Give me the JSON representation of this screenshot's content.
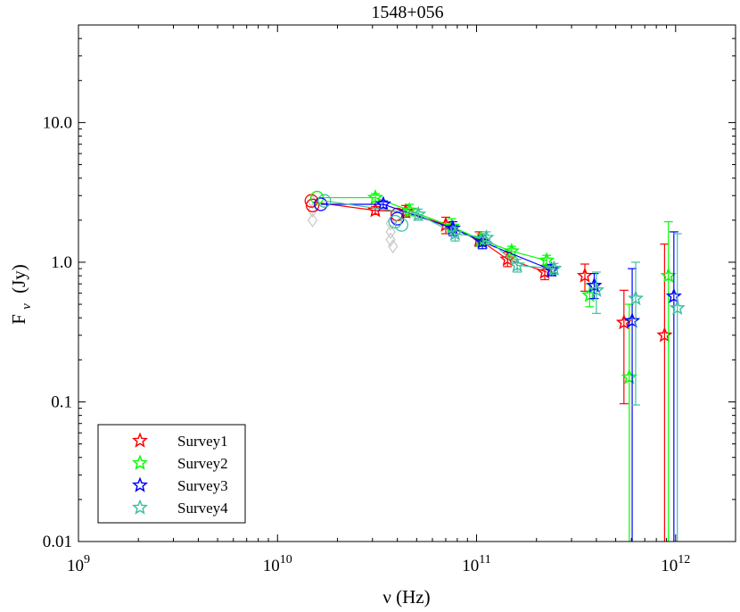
{
  "chart_data": {
    "type": "scatter",
    "title": "1548+056",
    "xlabel": "ν (Hz)",
    "ylabel": "Fν (Jy)",
    "ylabel_main": "F",
    "ylabel_sub": "ν",
    "ylabel_unit": "(Jy)",
    "xscale": "log",
    "yscale": "log",
    "xlim": [
      1000000000.0,
      2000000000000.0
    ],
    "ylim": [
      0.01,
      50
    ],
    "xticks": [
      {
        "value": 1000000000.0,
        "base": "10",
        "exp": "9"
      },
      {
        "value": 10000000000.0,
        "base": "10",
        "exp": "10"
      },
      {
        "value": 100000000000.0,
        "base": "10",
        "exp": "11"
      },
      {
        "value": 1000000000000.0,
        "base": "10",
        "exp": "12"
      }
    ],
    "yticks": [
      {
        "value": 0.01,
        "label": "0.01"
      },
      {
        "value": 0.1,
        "label": "0.1"
      },
      {
        "value": 1,
        "label": "1.0"
      },
      {
        "value": 10,
        "label": "10.0"
      }
    ],
    "legend_position": "bottom-left",
    "reference_points": {
      "name": "archival",
      "color": "#c8c8c8",
      "marker": "diamond",
      "x": [
        15000000000.0,
        15000000000.0,
        15000000000.0,
        37000000000.0,
        37000000000.0,
        37000000000.0,
        38000000000.0
      ],
      "y": [
        2.7,
        2.35,
        2.0,
        1.9,
        1.65,
        1.45,
        1.3
      ]
    },
    "series": [
      {
        "name": "Survey1",
        "color": "#ff0000",
        "circles": [
          {
            "x": 14800000000.0,
            "y": 2.75
          },
          {
            "x": 15000000000.0,
            "y": 2.55
          },
          {
            "x": 40000000000.0,
            "y": 2.2
          }
        ],
        "line": [
          {
            "x": 15000000000.0,
            "y": 2.7
          },
          {
            "x": 31000000000.0,
            "y": 2.35
          },
          {
            "x": 44000000000.0,
            "y": 2.3
          },
          {
            "x": 70000000000.0,
            "y": 1.85
          },
          {
            "x": 103000000000.0,
            "y": 1.45
          },
          {
            "x": 143000000000.0,
            "y": 1.05
          },
          {
            "x": 225000000000.0,
            "y": 0.85
          }
        ],
        "stars": [
          {
            "x": 31000000000.0,
            "y": 2.35,
            "lo": 2.2,
            "hi": 2.5
          },
          {
            "x": 44000000000.0,
            "y": 2.3,
            "lo": 2.1,
            "hi": 2.55
          },
          {
            "x": 70000000000.0,
            "y": 1.85,
            "lo": 1.6,
            "hi": 2.1
          },
          {
            "x": 103000000000.0,
            "y": 1.45,
            "lo": 1.3,
            "hi": 1.65
          },
          {
            "x": 143000000000.0,
            "y": 1.05,
            "lo": 0.93,
            "hi": 1.18
          },
          {
            "x": 220000000000.0,
            "y": 0.85,
            "lo": 0.75,
            "hi": 0.95
          },
          {
            "x": 350000000000.0,
            "y": 0.8,
            "lo": 0.62,
            "hi": 0.97
          },
          {
            "x": 550000000000.0,
            "y": 0.37,
            "lo": 0.097,
            "hi": 0.63
          },
          {
            "x": 880000000000.0,
            "y": 0.3,
            "lo": 0.01,
            "hi": 1.35
          }
        ]
      },
      {
        "name": "Survey2",
        "color": "#00ff00",
        "circles": [
          {
            "x": 15800000000.0,
            "y": 2.9
          }
        ],
        "line": [
          {
            "x": 15800000000.0,
            "y": 2.9
          },
          {
            "x": 31000000000.0,
            "y": 2.9
          },
          {
            "x": 46000000000.0,
            "y": 2.35
          },
          {
            "x": 75000000000.0,
            "y": 1.8
          },
          {
            "x": 105000000000.0,
            "y": 1.45
          },
          {
            "x": 150000000000.0,
            "y": 1.2
          },
          {
            "x": 225000000000.0,
            "y": 1.03
          }
        ],
        "stars": [
          {
            "x": 31000000000.0,
            "y": 2.9,
            "lo": 2.7,
            "hi": 3.1
          },
          {
            "x": 46000000000.0,
            "y": 2.35,
            "lo": 2.15,
            "hi": 2.6
          },
          {
            "x": 75000000000.0,
            "y": 1.8,
            "lo": 1.6,
            "hi": 2.05
          },
          {
            "x": 105000000000.0,
            "y": 1.45,
            "lo": 1.3,
            "hi": 1.6
          },
          {
            "x": 150000000000.0,
            "y": 1.2,
            "lo": 1.08,
            "hi": 1.3
          },
          {
            "x": 225000000000.0,
            "y": 1.03,
            "lo": 0.94,
            "hi": 1.12
          },
          {
            "x": 370000000000.0,
            "y": 0.58,
            "lo": 0.48,
            "hi": 0.7
          },
          {
            "x": 585000000000.0,
            "y": 0.15,
            "lo": 0.01,
            "hi": 0.5
          },
          {
            "x": 920000000000.0,
            "y": 0.8,
            "lo": 0.01,
            "hi": 1.95
          }
        ]
      },
      {
        "name": "Survey3",
        "color": "#0000ff",
        "circles": [
          {
            "x": 16500000000.0,
            "y": 2.6
          },
          {
            "x": 40000000000.0,
            "y": 2.05
          }
        ],
        "line": [
          {
            "x": 16500000000.0,
            "y": 2.6
          },
          {
            "x": 34000000000.0,
            "y": 2.6
          },
          {
            "x": 76000000000.0,
            "y": 1.75
          },
          {
            "x": 107000000000.0,
            "y": 1.4
          },
          {
            "x": 238000000000.0,
            "y": 0.88
          }
        ],
        "stars": [
          {
            "x": 34000000000.0,
            "y": 2.6,
            "lo": 2.45,
            "hi": 2.75
          },
          {
            "x": 76000000000.0,
            "y": 1.75,
            "lo": 1.55,
            "hi": 1.95
          },
          {
            "x": 107000000000.0,
            "y": 1.4,
            "lo": 1.25,
            "hi": 1.55
          },
          {
            "x": 238000000000.0,
            "y": 0.88,
            "lo": 0.8,
            "hi": 0.96
          },
          {
            "x": 390000000000.0,
            "y": 0.68,
            "lo": 0.55,
            "hi": 0.83
          },
          {
            "x": 605000000000.0,
            "y": 0.38,
            "lo": 0.01,
            "hi": 0.9
          },
          {
            "x": 980000000000.0,
            "y": 0.57,
            "lo": 0.01,
            "hi": 1.65
          }
        ]
      },
      {
        "name": "Survey4",
        "color": "#40c0a0",
        "circles": [
          {
            "x": 17200000000.0,
            "y": 2.75
          },
          {
            "x": 39000000000.0,
            "y": 1.95
          },
          {
            "x": 42000000000.0,
            "y": 1.85
          }
        ],
        "line": [
          {
            "x": 17200000000.0,
            "y": 2.75
          },
          {
            "x": 51000000000.0,
            "y": 2.2
          },
          {
            "x": 78000000000.0,
            "y": 1.6
          },
          {
            "x": 112000000000.0,
            "y": 1.5
          },
          {
            "x": 160000000000.0,
            "y": 0.95
          },
          {
            "x": 245000000000.0,
            "y": 0.9
          }
        ],
        "stars": [
          {
            "x": 51000000000.0,
            "y": 2.2,
            "lo": 2.0,
            "hi": 2.4
          },
          {
            "x": 78000000000.0,
            "y": 1.6,
            "lo": 1.42,
            "hi": 1.78
          },
          {
            "x": 112000000000.0,
            "y": 1.5,
            "lo": 1.35,
            "hi": 1.65
          },
          {
            "x": 160000000000.0,
            "y": 0.95,
            "lo": 0.85,
            "hi": 1.05
          },
          {
            "x": 245000000000.0,
            "y": 0.9,
            "lo": 0.82,
            "hi": 0.98
          },
          {
            "x": 400000000000.0,
            "y": 0.63,
            "lo": 0.43,
            "hi": 0.85
          },
          {
            "x": 630000000000.0,
            "y": 0.55,
            "lo": 0.095,
            "hi": 1.0
          },
          {
            "x": 1020000000000.0,
            "y": 0.47,
            "lo": 0.01,
            "hi": 1.6
          }
        ]
      }
    ]
  }
}
